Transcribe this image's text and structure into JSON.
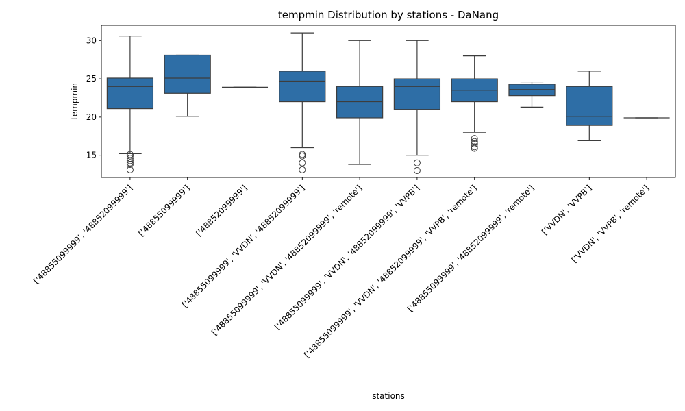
{
  "chart_data": {
    "type": "boxplot",
    "title": "tempmin Distribution by stations - DaNang",
    "xlabel": "stations",
    "ylabel": "tempmin",
    "ylim": [
      12.1,
      32.0
    ],
    "yticks": [
      15,
      20,
      25,
      30
    ],
    "box_color": "#2e6ea6",
    "line_color": "#3d3d3d",
    "categories": [
      "['48855099999', '48852099999']",
      "['48855099999']",
      "['48852099999']",
      "['48855099999', 'VVDN', '48852099999']",
      "['48855099999', 'VVDN', '48852099999', 'remote']",
      "['48855099999', 'VVDN', '48852099999', 'VVPB']",
      "['48855099999', 'VVDN', '48852099999', 'VVPB', 'remote']",
      "['48855099999', '48852099999', 'remote']",
      "['VVDN', 'VVPB']",
      "['VVDN', 'VVPB', 'remote']"
    ],
    "boxes": [
      {
        "whislo": 15.2,
        "q1": 21.1,
        "med": 24.0,
        "q3": 25.1,
        "whishi": 30.6,
        "fliers": [
          15.1,
          14.9,
          14.6,
          14.3,
          14.0,
          13.8,
          13.1
        ]
      },
      {
        "whislo": 20.1,
        "q1": 23.1,
        "med": 25.1,
        "q3": 28.1,
        "whishi": 28.1,
        "fliers": []
      },
      {
        "whislo": 23.9,
        "q1": 23.9,
        "med": 23.9,
        "q3": 23.9,
        "whishi": 23.9,
        "fliers": []
      },
      {
        "whislo": 16.0,
        "q1": 22.0,
        "med": 24.7,
        "q3": 26.0,
        "whishi": 31.0,
        "fliers": [
          15.1,
          14.9,
          14.0,
          13.1
        ]
      },
      {
        "whislo": 13.8,
        "q1": 19.9,
        "med": 22.0,
        "q3": 24.0,
        "whishi": 30.0,
        "fliers": []
      },
      {
        "whislo": 15.0,
        "q1": 21.0,
        "med": 24.0,
        "q3": 25.0,
        "whishi": 30.0,
        "fliers": [
          14.0,
          13.0
        ]
      },
      {
        "whislo": 18.0,
        "q1": 22.0,
        "med": 23.5,
        "q3": 25.0,
        "whishi": 28.0,
        "fliers": [
          17.2,
          16.8,
          16.5,
          16.1,
          15.9
        ]
      },
      {
        "whislo": 21.3,
        "q1": 22.8,
        "med": 23.6,
        "q3": 24.3,
        "whishi": 24.6,
        "fliers": []
      },
      {
        "whislo": 16.9,
        "q1": 18.9,
        "med": 20.1,
        "q3": 24.0,
        "whishi": 26.0,
        "fliers": []
      },
      {
        "whislo": 19.9,
        "q1": 19.9,
        "med": 19.9,
        "q3": 19.9,
        "whishi": 19.9,
        "fliers": []
      }
    ]
  }
}
